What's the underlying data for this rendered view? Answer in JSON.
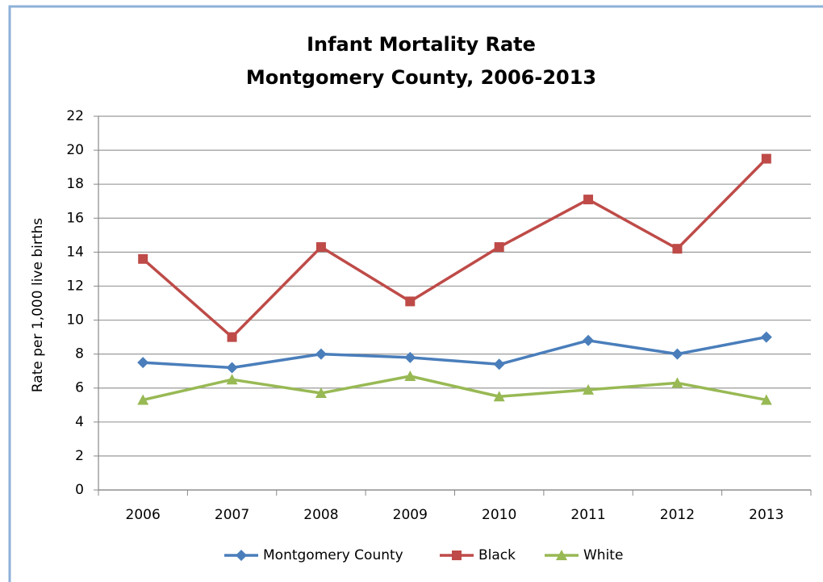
{
  "chart_data": {
    "type": "line",
    "title": "Infant Mortality Rate",
    "subtitle": "Montgomery County, 2006-2013",
    "y_label": "Rate per 1,000 live births",
    "categories": [
      "2006",
      "2007",
      "2008",
      "2009",
      "2010",
      "2011",
      "2012",
      "2013"
    ],
    "series": [
      {
        "name": "Montgomery County",
        "color": "#4a7ebb",
        "marker": "diamond",
        "values": [
          7.5,
          7.2,
          8.0,
          7.8,
          7.4,
          8.8,
          8.0,
          9.0
        ]
      },
      {
        "name": "Black",
        "color": "#be4b48",
        "marker": "square",
        "values": [
          13.6,
          9.0,
          14.3,
          11.1,
          14.3,
          17.1,
          14.2,
          19.5
        ]
      },
      {
        "name": "White",
        "color": "#98b954",
        "marker": "triangle",
        "values": [
          5.3,
          6.5,
          5.7,
          6.7,
          5.5,
          5.9,
          6.3,
          5.3
        ]
      }
    ],
    "ylim": [
      0,
      22
    ],
    "yticks": [
      0,
      2,
      4,
      6,
      8,
      10,
      12,
      14,
      16,
      18,
      20,
      22
    ],
    "grid": true,
    "legend": "bottom"
  }
}
